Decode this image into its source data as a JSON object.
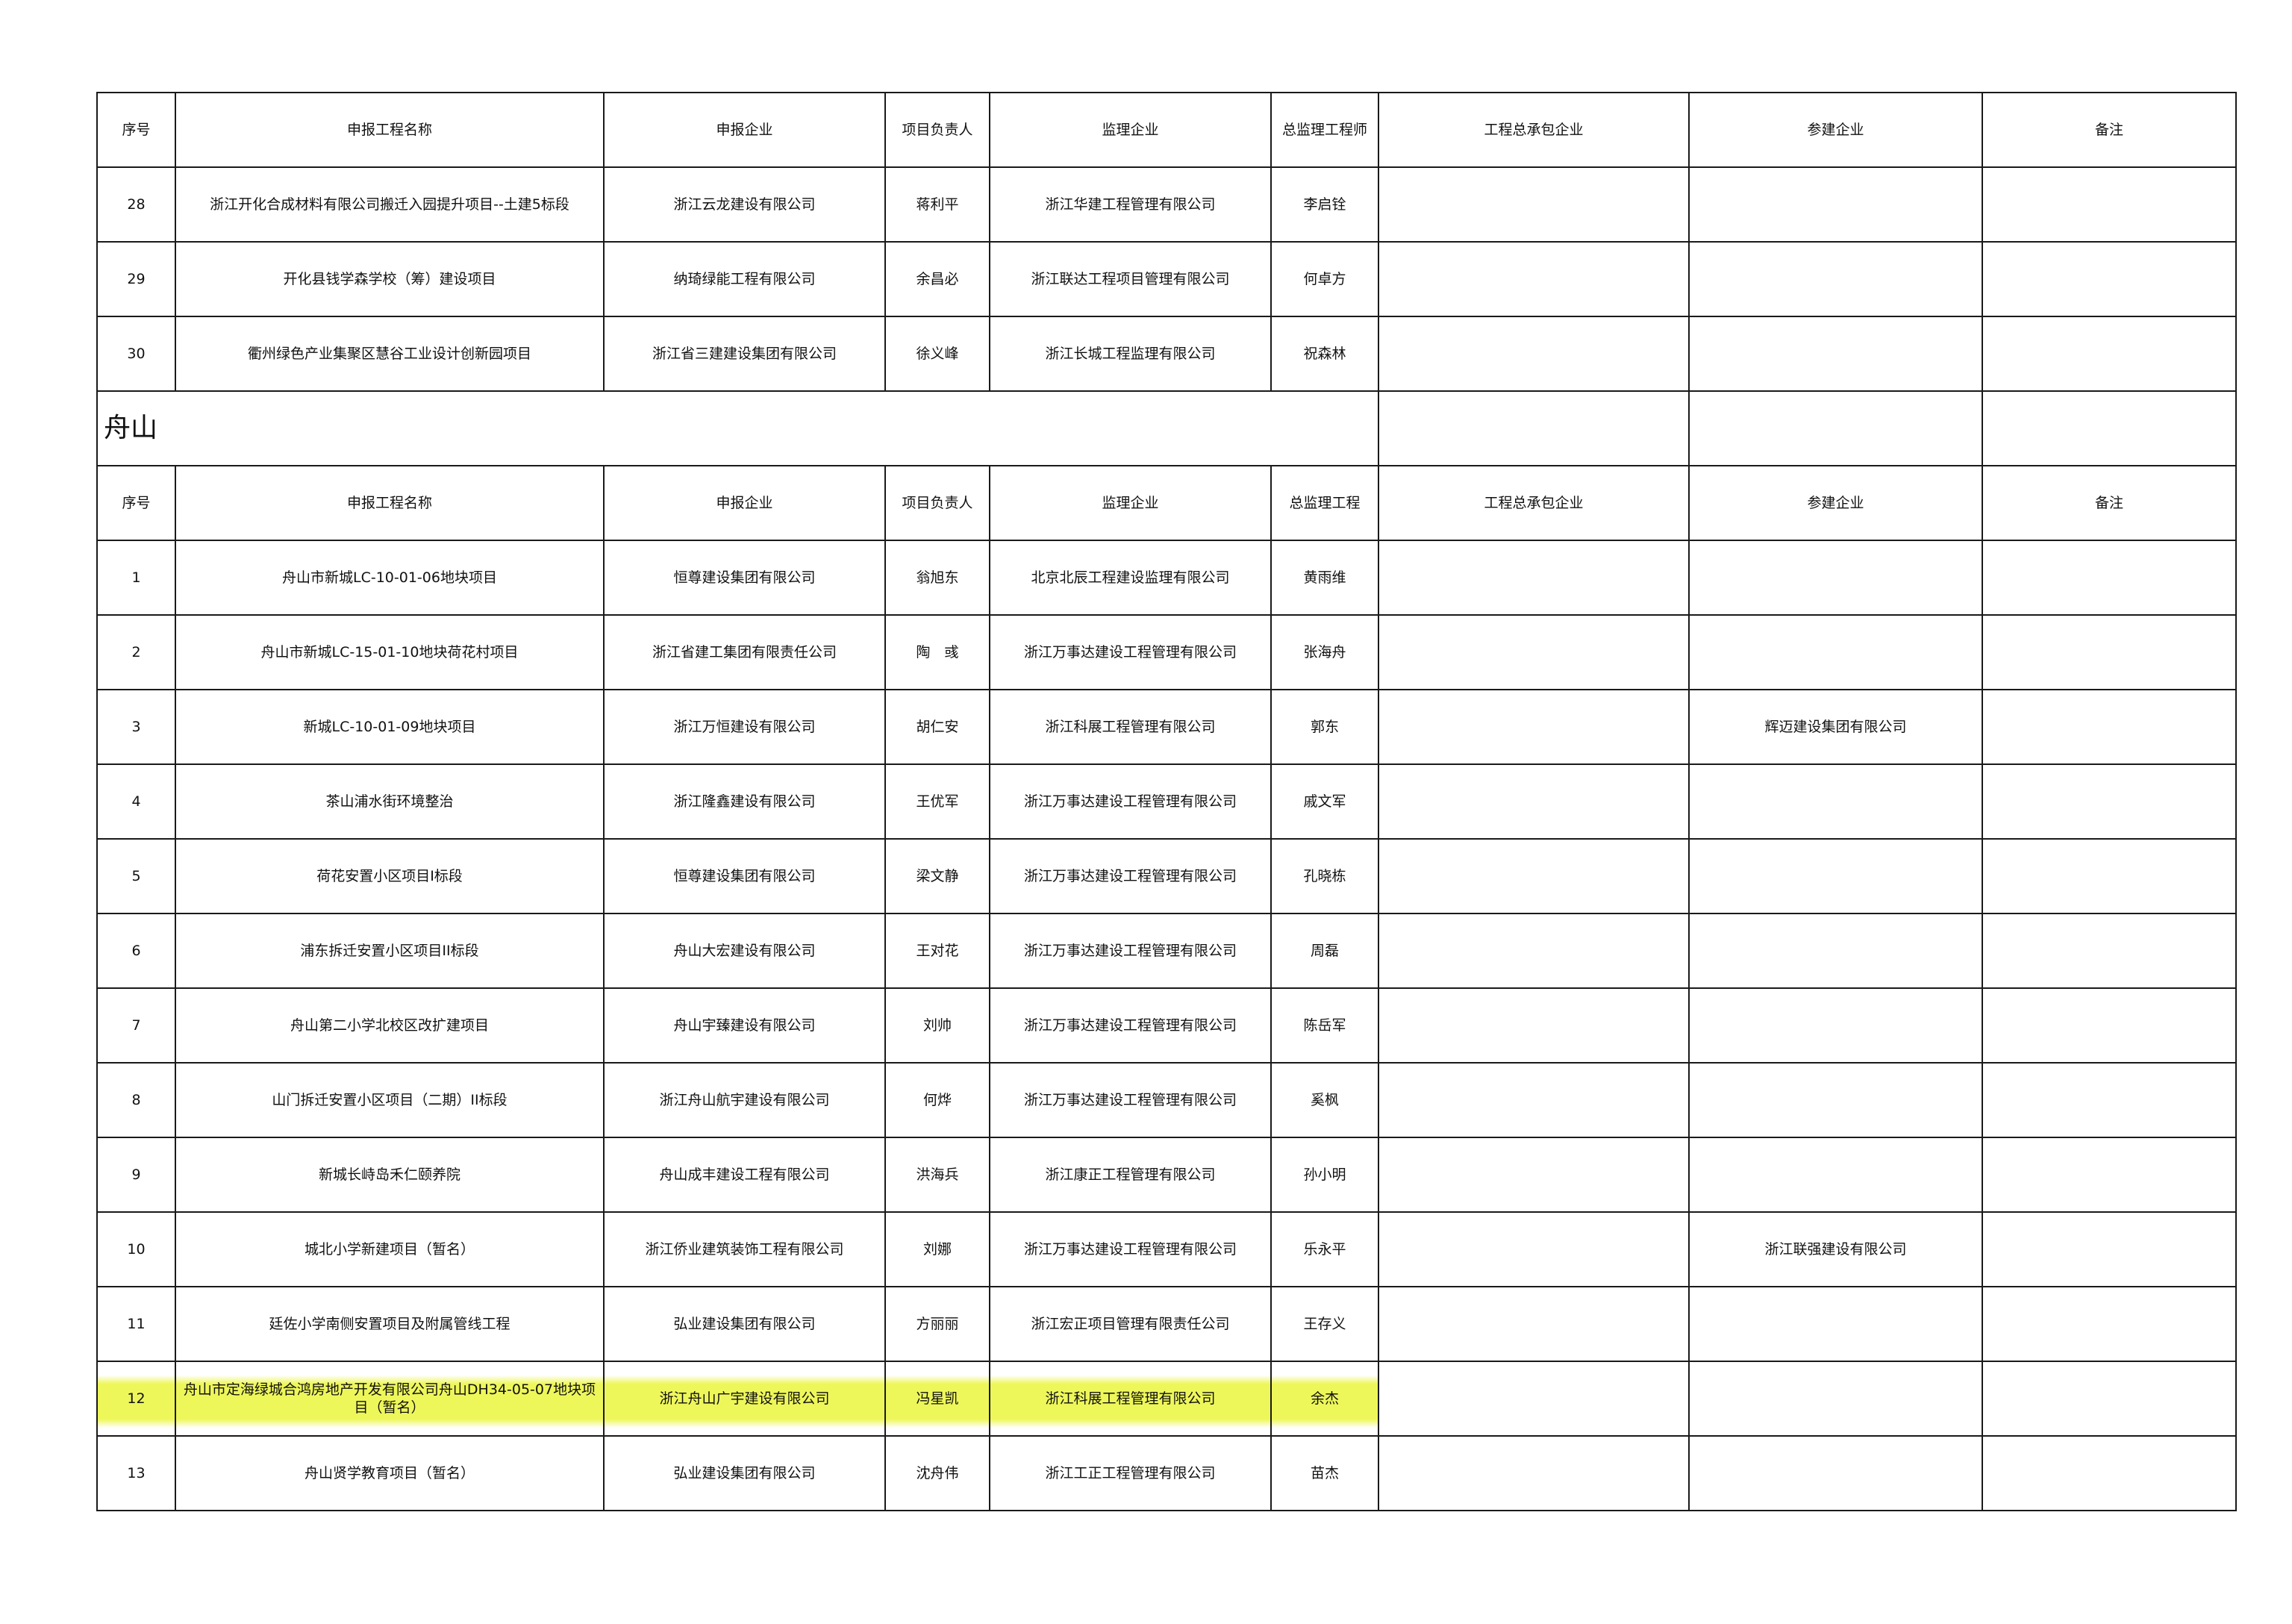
{
  "headers": [
    "序号",
    "申报工程名称",
    "申报企业",
    "项目负责人",
    "监理企业",
    "总监理工程师",
    "工程总承包企业",
    "参建企业",
    "备注"
  ],
  "headers_second": [
    "序号",
    "申报工程名称",
    "申报企业",
    "项目负责人",
    "监理企业",
    "总监理工程",
    "工程总承包企业",
    "参建企业",
    "备注"
  ],
  "region": "舟山",
  "highlight_color": "#eef75a",
  "rows_top": [
    [
      "28",
      "浙江开化合成材料有限公司搬迁入园提升项目--土建5标段",
      "浙江云龙建设有限公司",
      "蒋利平",
      "浙江华建工程管理有限公司",
      "李启铨",
      "",
      "",
      ""
    ],
    [
      "29",
      "开化县钱学森学校（筹）建设项目",
      "纳琦绿能工程有限公司",
      "余昌必",
      "浙江联达工程项目管理有限公司",
      "何卓方",
      "",
      "",
      ""
    ],
    [
      "30",
      "衢州绿色产业集聚区慧谷工业设计创新园项目",
      "浙江省三建建设集团有限公司",
      "徐义峰",
      "浙江长城工程监理有限公司",
      "祝森林",
      "",
      "",
      ""
    ]
  ],
  "rows_zhoushan": [
    [
      "1",
      "舟山市新城LC-10-01-06地块项目",
      "恒尊建设集团有限公司",
      "翁旭东",
      "北京北辰工程建设监理有限公司",
      "黄雨维",
      "",
      "",
      ""
    ],
    [
      "2",
      "舟山市新城LC-15-01-10地块荷花村项目",
      "浙江省建工集团有限责任公司",
      "陶　彧",
      "浙江万事达建设工程管理有限公司",
      "张海舟",
      "",
      "",
      ""
    ],
    [
      "3",
      "新城LC-10-01-09地块项目",
      "浙江万恒建设有限公司",
      "胡仁安",
      "浙江科展工程管理有限公司",
      "郭东",
      "",
      "辉迈建设集团有限公司",
      ""
    ],
    [
      "4",
      "茶山浦水街环境整治",
      "浙江隆鑫建设有限公司",
      "王优军",
      "浙江万事达建设工程管理有限公司",
      "戚文军",
      "",
      "",
      ""
    ],
    [
      "5",
      "荷花安置小区项目I标段",
      "恒尊建设集团有限公司",
      "梁文静",
      "浙江万事达建设工程管理有限公司",
      "孔晓栋",
      "",
      "",
      ""
    ],
    [
      "6",
      "浦东拆迁安置小区项目II标段",
      "舟山大宏建设有限公司",
      "王对花",
      "浙江万事达建设工程管理有限公司",
      "周磊",
      "",
      "",
      ""
    ],
    [
      "7",
      "舟山第二小学北校区改扩建项目",
      "舟山宇臻建设有限公司",
      "刘帅",
      "浙江万事达建设工程管理有限公司",
      "陈岳军",
      "",
      "",
      ""
    ],
    [
      "8",
      "山门拆迁安置小区项目（二期）II标段",
      "浙江舟山航宇建设有限公司",
      "何烨",
      "浙江万事达建设工程管理有限公司",
      "奚枫",
      "",
      "",
      ""
    ],
    [
      "9",
      "新城长峙岛禾仁颐养院",
      "舟山成丰建设工程有限公司",
      "洪海兵",
      "浙江康正工程管理有限公司",
      "孙小明",
      "",
      "",
      ""
    ],
    [
      "10",
      "城北小学新建项目（暂名）",
      "浙江侨业建筑装饰工程有限公司",
      "刘娜",
      "浙江万事达建设工程管理有限公司",
      "乐永平",
      "",
      "浙江联强建设有限公司",
      ""
    ],
    [
      "11",
      "廷佐小学南侧安置项目及附属管线工程",
      "弘业建设集团有限公司",
      "方丽丽",
      "浙江宏正项目管理有限责任公司",
      "王存义",
      "",
      "",
      ""
    ],
    [
      "12",
      "舟山市定海绿城合鸿房地产开发有限公司舟山DH34-05-07地块项目（暂名）",
      "浙江舟山广宇建设有限公司",
      "冯星凯",
      "浙江科展工程管理有限公司",
      "余杰",
      "",
      "",
      ""
    ],
    [
      "13",
      "舟山贤学教育项目（暂名）",
      "弘业建设集团有限公司",
      "沈舟伟",
      "浙江工正工程管理有限公司",
      "苗杰",
      "",
      "",
      ""
    ]
  ],
  "highlighted_row": "12"
}
